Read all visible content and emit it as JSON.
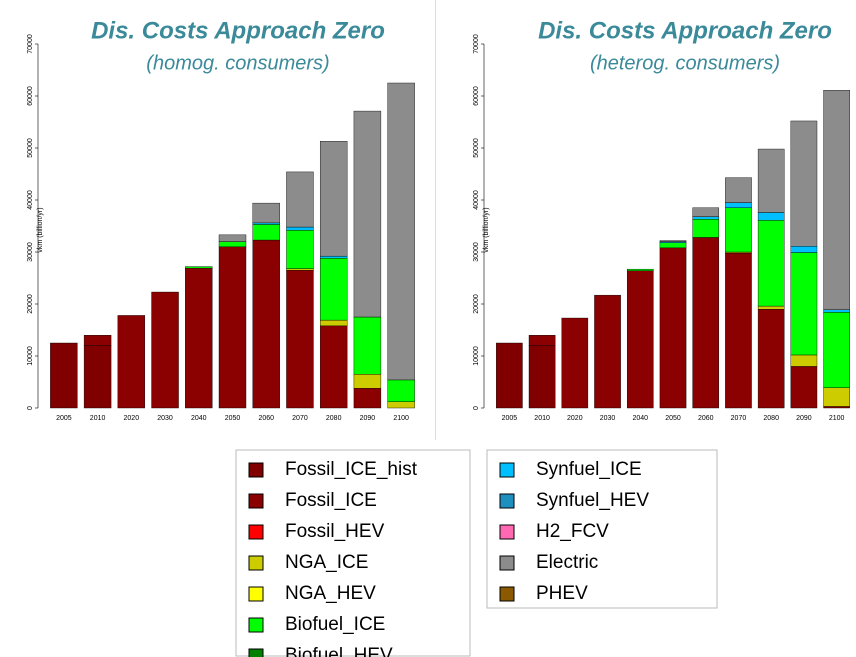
{
  "chart_data": [
    {
      "type": "bar",
      "stacked": true,
      "title": "Dis. Costs Approach Zero",
      "subtitle": "(homog. consumers)",
      "y_label": "vkm (billion/yr)",
      "categories": [
        "2005",
        "2010",
        "2020",
        "2030",
        "2040",
        "2050",
        "2060",
        "2070",
        "2080",
        "2090",
        "2100"
      ],
      "ylim": [
        0,
        70000
      ],
      "yticks": [
        0,
        10000,
        20000,
        30000,
        40000,
        50000,
        60000,
        70000
      ],
      "series": [
        {
          "name": "Fossil_ICE_hist",
          "color": "#800000",
          "values": [
            12500,
            12000,
            0,
            0,
            0,
            0,
            0,
            0,
            0,
            0,
            0
          ]
        },
        {
          "name": "Fossil_ICE",
          "color": "#8b0000",
          "values": [
            0,
            2000,
            17800,
            22300,
            26900,
            31000,
            32300,
            26500,
            15800,
            3800,
            0
          ]
        },
        {
          "name": "Fossil_HEV",
          "color": "#ff0000",
          "values": [
            0,
            0,
            0,
            0,
            0,
            0,
            0,
            0,
            0,
            0,
            0
          ]
        },
        {
          "name": "NGA_ICE",
          "color": "#cccc00",
          "values": [
            0,
            0,
            0,
            0,
            0,
            0,
            0,
            300,
            1100,
            2700,
            1200
          ]
        },
        {
          "name": "NGA_HEV",
          "color": "#ffff00",
          "values": [
            0,
            0,
            0,
            0,
            0,
            0,
            0,
            0,
            0,
            0,
            0
          ]
        },
        {
          "name": "Biofuel_ICE",
          "color": "#00ff00",
          "values": [
            0,
            0,
            0,
            0,
            300,
            1000,
            3000,
            7400,
            11900,
            11000,
            4200
          ]
        },
        {
          "name": "Biofuel_HEV",
          "color": "#008000",
          "values": [
            0,
            0,
            0,
            0,
            0,
            0,
            0,
            0,
            0,
            0,
            0
          ]
        },
        {
          "name": "Synfuel_ICE",
          "color": "#00bfff",
          "values": [
            0,
            0,
            0,
            0,
            0,
            0,
            300,
            600,
            400,
            0,
            0
          ]
        },
        {
          "name": "Synfuel_HEV",
          "color": "#1e90c0",
          "values": [
            0,
            0,
            0,
            0,
            0,
            0,
            0,
            0,
            0,
            0,
            0
          ]
        },
        {
          "name": "H2_FCV",
          "color": "#ff69b4",
          "values": [
            0,
            0,
            0,
            0,
            0,
            0,
            0,
            0,
            0,
            0,
            0
          ]
        },
        {
          "name": "Electric",
          "color": "#8c8c8c",
          "values": [
            0,
            0,
            0,
            0,
            0,
            1300,
            3800,
            10600,
            22100,
            39600,
            57100
          ]
        },
        {
          "name": "PHEV",
          "color": "#8b5a00",
          "values": [
            0,
            0,
            0,
            0,
            0,
            0,
            0,
            0,
            0,
            0,
            0
          ]
        }
      ]
    },
    {
      "type": "bar",
      "stacked": true,
      "title": "Dis. Costs Approach Zero",
      "subtitle": "(heterog. consumers)",
      "y_label": "vkm (billion/yr)",
      "categories": [
        "2005",
        "2010",
        "2020",
        "2030",
        "2040",
        "2050",
        "2060",
        "2070",
        "2080",
        "2090",
        "2100"
      ],
      "ylim": [
        0,
        70000
      ],
      "yticks": [
        0,
        10000,
        20000,
        30000,
        40000,
        50000,
        60000,
        70000
      ],
      "series": [
        {
          "name": "Fossil_ICE_hist",
          "color": "#800000",
          "values": [
            12500,
            12000,
            0,
            0,
            0,
            0,
            0,
            0,
            0,
            0,
            0
          ]
        },
        {
          "name": "Fossil_ICE",
          "color": "#8b0000",
          "values": [
            0,
            2000,
            17300,
            21700,
            26400,
            30800,
            32800,
            29800,
            19000,
            8000,
            300
          ]
        },
        {
          "name": "Fossil_HEV",
          "color": "#ff0000",
          "values": [
            0,
            0,
            0,
            0,
            0,
            0,
            0,
            0,
            0,
            0,
            0
          ]
        },
        {
          "name": "NGA_ICE",
          "color": "#cccc00",
          "values": [
            0,
            0,
            0,
            0,
            0,
            0,
            0,
            200,
            600,
            2200,
            3600
          ]
        },
        {
          "name": "NGA_HEV",
          "color": "#ffff00",
          "values": [
            0,
            0,
            0,
            0,
            0,
            0,
            0,
            0,
            0,
            0,
            0
          ]
        },
        {
          "name": "Biofuel_ICE",
          "color": "#00ff00",
          "values": [
            0,
            0,
            0,
            0,
            300,
            1000,
            3500,
            8500,
            16500,
            19700,
            14500
          ]
        },
        {
          "name": "Biofuel_HEV",
          "color": "#008000",
          "values": [
            0,
            0,
            0,
            0,
            0,
            0,
            0,
            0,
            0,
            0,
            0
          ]
        },
        {
          "name": "Synfuel_ICE",
          "color": "#00bfff",
          "values": [
            0,
            0,
            0,
            0,
            0,
            200,
            500,
            1000,
            1500,
            1200,
            500
          ]
        },
        {
          "name": "Synfuel_HEV",
          "color": "#1e90c0",
          "values": [
            0,
            0,
            0,
            0,
            0,
            0,
            0,
            0,
            0,
            0,
            0
          ]
        },
        {
          "name": "H2_FCV",
          "color": "#ff69b4",
          "values": [
            0,
            0,
            0,
            0,
            0,
            0,
            0,
            0,
            0,
            0,
            0
          ]
        },
        {
          "name": "Electric",
          "color": "#8c8c8c",
          "values": [
            0,
            0,
            0,
            0,
            0,
            200,
            1700,
            4800,
            12200,
            24100,
            42200
          ]
        },
        {
          "name": "PHEV",
          "color": "#8b5a00",
          "values": [
            0,
            0,
            0,
            0,
            0,
            0,
            0,
            0,
            0,
            0,
            0
          ]
        }
      ]
    }
  ]
}
